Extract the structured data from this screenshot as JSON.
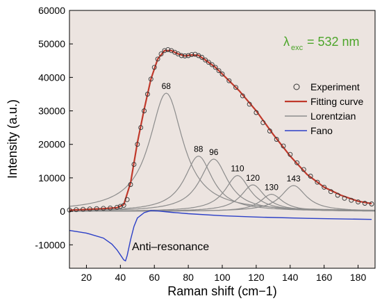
{
  "chart_data": {
    "type": "line",
    "xlabel": "Raman shift (cm−1)",
    "ylabel": "Intensity (a.u.)",
    "xlim": [
      10,
      190
    ],
    "ylim": [
      -17000,
      60000
    ],
    "x_ticks": [
      20,
      40,
      60,
      80,
      100,
      120,
      140,
      160,
      180
    ],
    "y_ticks": [
      -10000,
      0,
      10000,
      20000,
      30000,
      40000,
      50000,
      60000
    ],
    "grid": false,
    "legend_position": "right",
    "background_color": "#ece4e0",
    "excitation_label": {
      "symbol": "λ",
      "subscript": "exc",
      "value": "= 532 nm",
      "color": "#4ca52a"
    },
    "series": [
      {
        "name": "Experiment",
        "kind": "markers",
        "color": "#333333",
        "x": [
          10,
          14,
          18,
          22,
          26,
          30,
          34,
          38,
          40,
          42,
          44,
          46,
          48,
          50,
          52,
          54,
          56,
          58,
          60,
          62,
          64,
          66,
          68,
          70,
          72,
          74,
          76,
          78,
          80,
          82,
          84,
          86,
          88,
          90,
          92,
          94,
          96,
          98,
          100,
          104,
          108,
          112,
          116,
          120,
          124,
          128,
          132,
          136,
          140,
          144,
          148,
          152,
          156,
          160,
          164,
          168,
          172,
          176,
          180,
          184,
          188
        ],
        "y": [
          400,
          500,
          600,
          700,
          800,
          900,
          1000,
          1200,
          1500,
          1800,
          3500,
          8000,
          14000,
          20000,
          25000,
          30000,
          35000,
          39500,
          43000,
          45500,
          47000,
          48000,
          48300,
          48000,
          47500,
          47000,
          46500,
          46400,
          46500,
          46800,
          46900,
          46500,
          46000,
          45200,
          44500,
          43800,
          43000,
          42000,
          41000,
          39000,
          37000,
          34500,
          32000,
          29500,
          26500,
          24000,
          21500,
          19500,
          17000,
          14500,
          12500,
          10500,
          8700,
          7200,
          5900,
          4800,
          3900,
          3300,
          2800,
          2400,
          2200
        ]
      },
      {
        "name": "Fitting curve",
        "kind": "line",
        "color": "#c0392b",
        "x": [
          10,
          20,
          30,
          38,
          42,
          46,
          50,
          54,
          58,
          62,
          66,
          70,
          74,
          78,
          82,
          86,
          90,
          96,
          100,
          110,
          120,
          130,
          140,
          150,
          160,
          170,
          180,
          188
        ],
        "y": [
          350,
          550,
          800,
          1100,
          2000,
          8500,
          20500,
          30500,
          39500,
          45500,
          48000,
          48000,
          47000,
          46400,
          46700,
          46600,
          45200,
          43000,
          41000,
          36000,
          30000,
          23000,
          16500,
          11000,
          7200,
          4800,
          3000,
          2300
        ]
      },
      {
        "name": "Lorentzian",
        "kind": "peaks",
        "color": "#8c8c8c",
        "peaks": [
          {
            "label": "68",
            "center": 67,
            "amplitude": 35300,
            "width": 24
          },
          {
            "label": "88",
            "center": 86,
            "amplitude": 16500,
            "width": 20
          },
          {
            "label": "96",
            "center": 95,
            "amplitude": 15600,
            "width": 20
          },
          {
            "label": "110",
            "center": 109,
            "amplitude": 10700,
            "width": 18
          },
          {
            "label": "120",
            "center": 118,
            "amplitude": 7900,
            "width": 17
          },
          {
            "label": "130",
            "center": 129,
            "amplitude": 5100,
            "width": 16
          },
          {
            "label": "143",
            "center": 142,
            "amplitude": 7700,
            "width": 18
          }
        ]
      },
      {
        "name": "Fano",
        "kind": "line",
        "color": "#2b3fc7",
        "x": [
          10,
          20,
          30,
          35,
          38,
          40,
          42,
          43,
          44,
          46,
          48,
          50,
          54,
          58,
          62,
          70,
          80,
          100,
          120,
          150,
          188
        ],
        "y": [
          -5700,
          -6500,
          -8000,
          -9800,
          -11500,
          -13000,
          -14500,
          -14800,
          -13200,
          -8500,
          -4500,
          -2000,
          -400,
          200,
          100,
          -300,
          -700,
          -1300,
          -1700,
          -2100,
          -2400
        ]
      }
    ],
    "annotations": [
      {
        "text": "Anti–resonance",
        "x": 43,
        "y": -13000
      }
    ]
  }
}
